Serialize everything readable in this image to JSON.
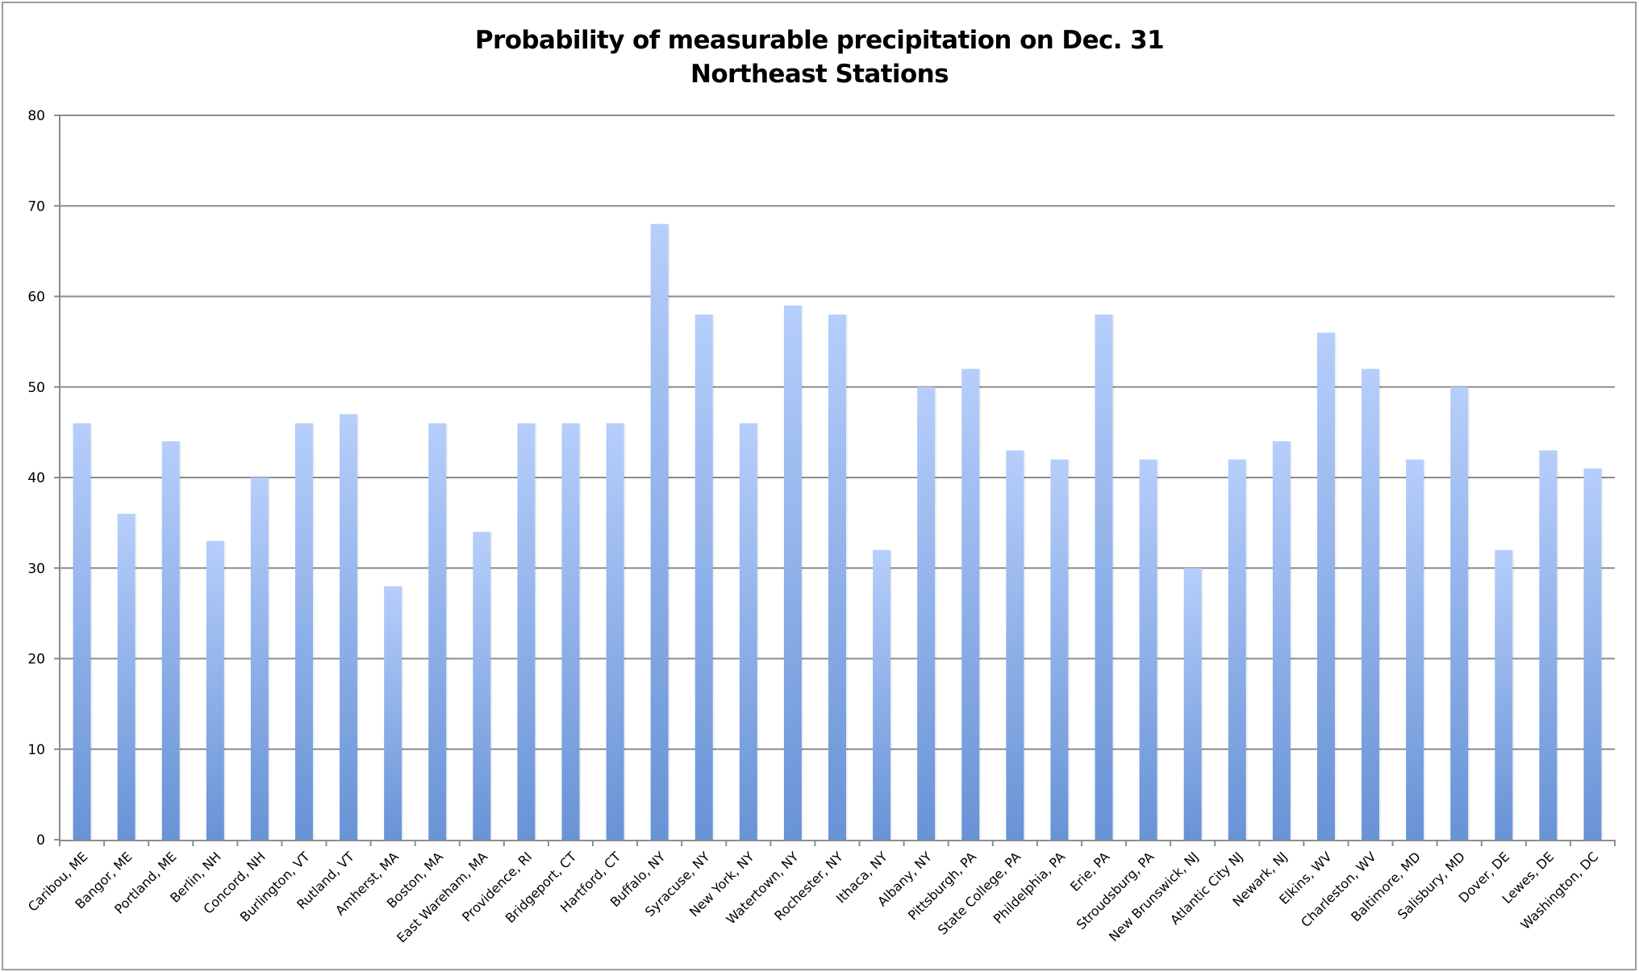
{
  "chart_data": {
    "type": "bar",
    "title": "Probability of measurable precipitation on Dec. 31",
    "subtitle": "Northeast Stations",
    "xlabel": "",
    "ylabel": "",
    "ylim": [
      0,
      80
    ],
    "yticks": [
      0,
      10,
      20,
      30,
      40,
      50,
      60,
      70,
      80
    ],
    "grid": true,
    "legend": "none",
    "colors": {
      "bar_top": "#b6cefb",
      "bar_bottom": "#6893d6",
      "grid": "#8c8c8c",
      "border": "#9c9c9c"
    },
    "categories": [
      "Caribou, ME",
      "Bangor, ME",
      "Portland, ME",
      "Berlin, NH",
      "Concord, NH",
      "Burlington, VT",
      "Rutland, VT",
      "Amherst, MA",
      "Boston, MA",
      "East Wareham, MA",
      "Providence, RI",
      "Bridgeport, CT",
      "Hartford, CT",
      "Buffalo, NY",
      "Syracuse, NY",
      "New York, NY",
      "Watertown, NY",
      "Rochester, NY",
      "Ithaca, NY",
      "Albany, NY",
      "Pittsburgh, PA",
      "State College, PA",
      "Phildelphia, PA",
      "Erie, PA",
      "Stroudsburg, PA",
      "New Brunswick, NJ",
      "Atlantic City NJ",
      "Newark, NJ",
      "Elkins, WV",
      "Charleston, WV",
      "Baltimore, MD",
      "Salisbury, MD",
      "Dover, DE",
      "Lewes, DE",
      "Washington, DC"
    ],
    "values": [
      46,
      36,
      44,
      33,
      40,
      46,
      47,
      28,
      46,
      34,
      46,
      46,
      46,
      68,
      58,
      46,
      59,
      58,
      32,
      50,
      52,
      43,
      42,
      58,
      42,
      30,
      42,
      44,
      56,
      52,
      42,
      50,
      32,
      43,
      41
    ]
  }
}
